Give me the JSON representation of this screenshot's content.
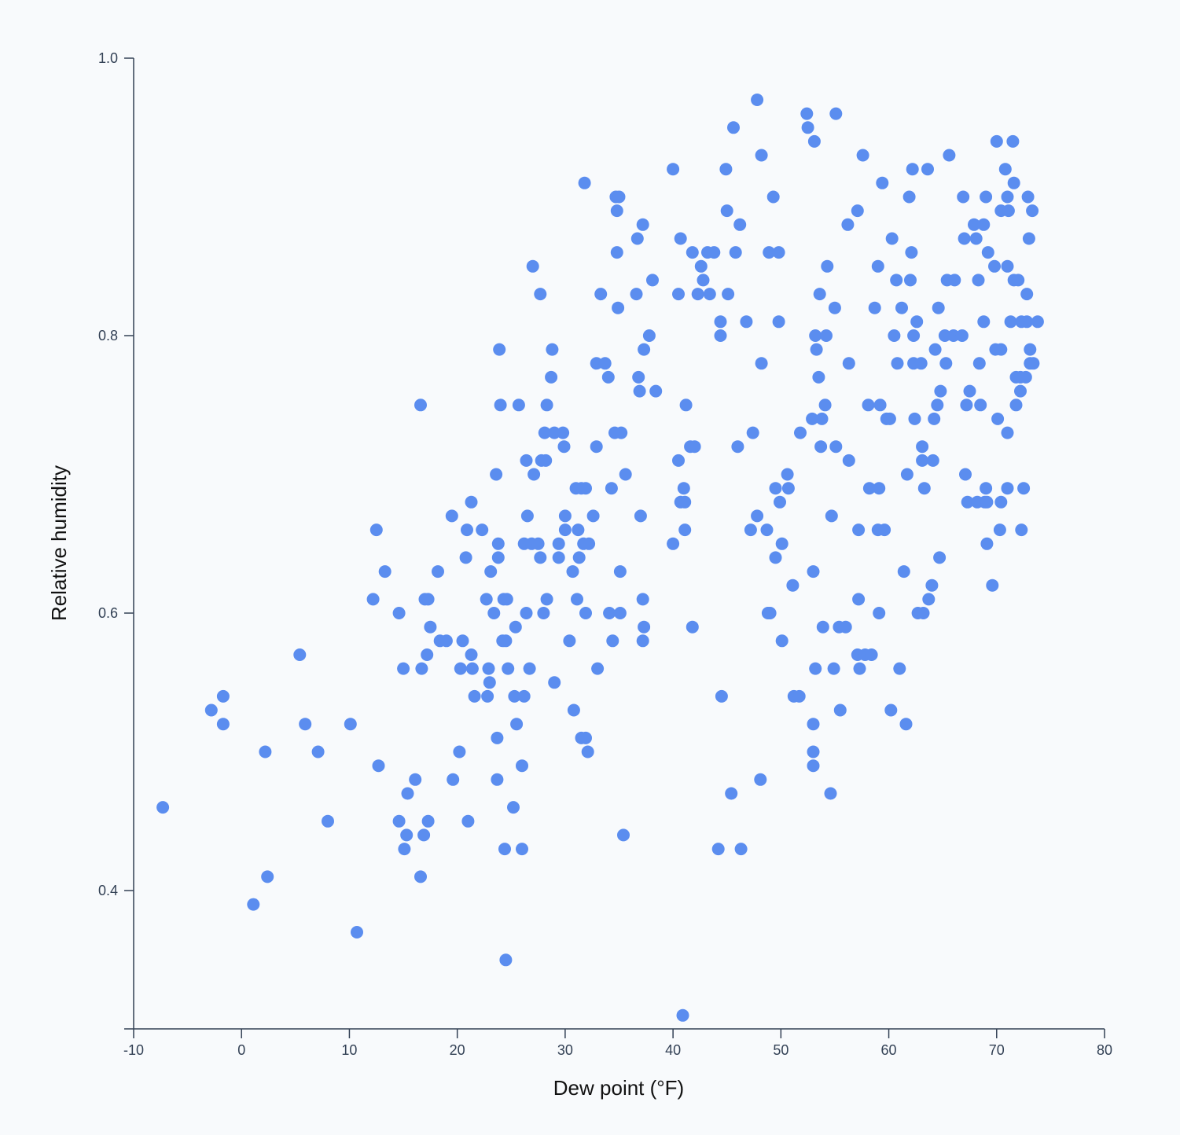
{
  "chart_data": {
    "type": "scatter",
    "xlabel": "Dew point (°F)",
    "ylabel": "Relative humidity",
    "xlim": [
      -10,
      80
    ],
    "ylim": [
      0.31,
      1.0
    ],
    "x_ticks": [
      "-10",
      "0",
      "10",
      "20",
      "30",
      "40",
      "50",
      "60",
      "70",
      "80"
    ],
    "y_ticks": [
      "0.4",
      "0.6",
      "0.8",
      "1.0"
    ],
    "grid": false,
    "point_color": "#5b8def",
    "points": [
      [
        -7.3,
        0.46
      ],
      [
        -2.8,
        0.53
      ],
      [
        -1.7,
        0.54
      ],
      [
        -1.7,
        0.52
      ],
      [
        1.1,
        0.39
      ],
      [
        2.2,
        0.5
      ],
      [
        2.4,
        0.41
      ],
      [
        5.4,
        0.57
      ],
      [
        5.9,
        0.52
      ],
      [
        7.1,
        0.5
      ],
      [
        8.0,
        0.45
      ],
      [
        10.1,
        0.52
      ],
      [
        10.7,
        0.37
      ],
      [
        12.2,
        0.61
      ],
      [
        12.5,
        0.66
      ],
      [
        12.7,
        0.49
      ],
      [
        13.3,
        0.63
      ],
      [
        14.6,
        0.45
      ],
      [
        14.6,
        0.6
      ],
      [
        15.0,
        0.56
      ],
      [
        15.1,
        0.43
      ],
      [
        15.3,
        0.44
      ],
      [
        15.4,
        0.47
      ],
      [
        16.1,
        0.48
      ],
      [
        16.6,
        0.41
      ],
      [
        16.6,
        0.75
      ],
      [
        16.7,
        0.56
      ],
      [
        16.9,
        0.44
      ],
      [
        17.0,
        0.61
      ],
      [
        17.3,
        0.61
      ],
      [
        17.2,
        0.57
      ],
      [
        17.3,
        0.45
      ],
      [
        17.5,
        0.59
      ],
      [
        18.2,
        0.63
      ],
      [
        18.4,
        0.58
      ],
      [
        19.0,
        0.58
      ],
      [
        19.5,
        0.67
      ],
      [
        19.6,
        0.48
      ],
      [
        20.2,
        0.5
      ],
      [
        20.3,
        0.56
      ],
      [
        20.5,
        0.58
      ],
      [
        20.8,
        0.64
      ],
      [
        20.9,
        0.66
      ],
      [
        21.0,
        0.45
      ],
      [
        21.3,
        0.57
      ],
      [
        21.3,
        0.68
      ],
      [
        21.4,
        0.56
      ],
      [
        21.6,
        0.54
      ],
      [
        22.3,
        0.66
      ],
      [
        22.7,
        0.61
      ],
      [
        22.8,
        0.54
      ],
      [
        22.9,
        0.56
      ],
      [
        23.0,
        0.55
      ],
      [
        23.1,
        0.63
      ],
      [
        23.4,
        0.6
      ],
      [
        23.6,
        0.7
      ],
      [
        23.7,
        0.51
      ],
      [
        23.7,
        0.48
      ],
      [
        23.8,
        0.65
      ],
      [
        23.8,
        0.64
      ],
      [
        23.9,
        0.79
      ],
      [
        24.0,
        0.75
      ],
      [
        24.2,
        0.58
      ],
      [
        24.3,
        0.61
      ],
      [
        24.4,
        0.43
      ],
      [
        24.5,
        0.58
      ],
      [
        24.5,
        0.35
      ],
      [
        24.6,
        0.61
      ],
      [
        24.7,
        0.56
      ],
      [
        25.2,
        0.46
      ],
      [
        25.3,
        0.54
      ],
      [
        25.4,
        0.59
      ],
      [
        25.5,
        0.52
      ],
      [
        25.7,
        0.75
      ],
      [
        26.0,
        0.49
      ],
      [
        26.0,
        0.43
      ],
      [
        26.2,
        0.65
      ],
      [
        26.2,
        0.54
      ],
      [
        26.4,
        0.6
      ],
      [
        26.4,
        0.71
      ],
      [
        26.5,
        0.67
      ],
      [
        26.7,
        0.56
      ],
      [
        26.9,
        0.65
      ],
      [
        27.0,
        0.85
      ],
      [
        27.1,
        0.7
      ],
      [
        27.5,
        0.65
      ],
      [
        27.7,
        0.64
      ],
      [
        27.7,
        0.83
      ],
      [
        27.8,
        0.71
      ],
      [
        28.0,
        0.6
      ],
      [
        28.1,
        0.73
      ],
      [
        28.2,
        0.71
      ],
      [
        28.3,
        0.75
      ],
      [
        28.3,
        0.61
      ],
      [
        28.7,
        0.77
      ],
      [
        28.8,
        0.79
      ],
      [
        29.0,
        0.73
      ],
      [
        29.0,
        0.55
      ],
      [
        29.4,
        0.65
      ],
      [
        29.4,
        0.64
      ],
      [
        29.8,
        0.73
      ],
      [
        29.9,
        0.72
      ],
      [
        30.0,
        0.67
      ],
      [
        30.0,
        0.66
      ],
      [
        30.4,
        0.58
      ],
      [
        30.7,
        0.63
      ],
      [
        30.8,
        0.53
      ],
      [
        31.0,
        0.69
      ],
      [
        31.1,
        0.61
      ],
      [
        31.2,
        0.66
      ],
      [
        31.3,
        0.64
      ],
      [
        31.5,
        0.69
      ],
      [
        31.5,
        0.51
      ],
      [
        31.7,
        0.65
      ],
      [
        31.8,
        0.91
      ],
      [
        31.9,
        0.69
      ],
      [
        31.9,
        0.51
      ],
      [
        31.9,
        0.6
      ],
      [
        32.1,
        0.5
      ],
      [
        32.2,
        0.65
      ],
      [
        32.6,
        0.67
      ],
      [
        32.9,
        0.78
      ],
      [
        32.9,
        0.72
      ],
      [
        33.0,
        0.56
      ],
      [
        33.3,
        0.83
      ],
      [
        33.7,
        0.78
      ],
      [
        34.0,
        0.77
      ],
      [
        34.1,
        0.6
      ],
      [
        34.3,
        0.69
      ],
      [
        34.4,
        0.58
      ],
      [
        34.6,
        0.73
      ],
      [
        34.7,
        0.9
      ],
      [
        34.8,
        0.89
      ],
      [
        34.8,
        0.86
      ],
      [
        34.9,
        0.82
      ],
      [
        35.0,
        0.9
      ],
      [
        35.1,
        0.6
      ],
      [
        35.1,
        0.63
      ],
      [
        35.2,
        0.73
      ],
      [
        35.4,
        0.44
      ],
      [
        35.6,
        0.7
      ],
      [
        36.6,
        0.83
      ],
      [
        36.7,
        0.87
      ],
      [
        36.8,
        0.77
      ],
      [
        36.9,
        0.76
      ],
      [
        37.0,
        0.67
      ],
      [
        37.2,
        0.88
      ],
      [
        37.2,
        0.61
      ],
      [
        37.2,
        0.58
      ],
      [
        37.3,
        0.59
      ],
      [
        37.3,
        0.79
      ],
      [
        37.8,
        0.8
      ],
      [
        38.1,
        0.84
      ],
      [
        38.4,
        0.76
      ],
      [
        40.0,
        0.92
      ],
      [
        40.0,
        0.65
      ],
      [
        40.5,
        0.83
      ],
      [
        40.5,
        0.71
      ],
      [
        40.7,
        0.87
      ],
      [
        40.7,
        0.68
      ],
      [
        40.9,
        0.31
      ],
      [
        41.0,
        0.69
      ],
      [
        41.1,
        0.66
      ],
      [
        41.1,
        0.68
      ],
      [
        41.2,
        0.75
      ],
      [
        41.6,
        0.72
      ],
      [
        41.8,
        0.59
      ],
      [
        41.8,
        0.86
      ],
      [
        42.0,
        0.72
      ],
      [
        42.3,
        0.83
      ],
      [
        42.6,
        0.85
      ],
      [
        42.8,
        0.84
      ],
      [
        43.2,
        0.86
      ],
      [
        43.4,
        0.83
      ],
      [
        43.8,
        0.86
      ],
      [
        44.2,
        0.43
      ],
      [
        44.4,
        0.81
      ],
      [
        44.4,
        0.8
      ],
      [
        44.5,
        0.54
      ],
      [
        44.9,
        0.92
      ],
      [
        45.0,
        0.89
      ],
      [
        45.1,
        0.83
      ],
      [
        45.4,
        0.47
      ],
      [
        45.6,
        0.95
      ],
      [
        45.8,
        0.86
      ],
      [
        46.0,
        0.72
      ],
      [
        46.2,
        0.88
      ],
      [
        46.3,
        0.43
      ],
      [
        46.8,
        0.81
      ],
      [
        47.2,
        0.66
      ],
      [
        47.4,
        0.73
      ],
      [
        47.8,
        0.67
      ],
      [
        47.8,
        0.97
      ],
      [
        48.1,
        0.48
      ],
      [
        48.2,
        0.93
      ],
      [
        48.2,
        0.78
      ],
      [
        48.7,
        0.66
      ],
      [
        48.8,
        0.6
      ],
      [
        48.9,
        0.86
      ],
      [
        49.0,
        0.6
      ],
      [
        49.3,
        0.9
      ],
      [
        49.5,
        0.69
      ],
      [
        49.5,
        0.64
      ],
      [
        49.8,
        0.86
      ],
      [
        49.8,
        0.81
      ],
      [
        49.9,
        0.68
      ],
      [
        50.1,
        0.58
      ],
      [
        50.1,
        0.65
      ],
      [
        50.6,
        0.7
      ],
      [
        50.7,
        0.69
      ],
      [
        51.1,
        0.62
      ],
      [
        51.2,
        0.54
      ],
      [
        51.7,
        0.54
      ],
      [
        51.8,
        0.73
      ],
      [
        52.4,
        0.96
      ],
      [
        52.5,
        0.95
      ],
      [
        52.9,
        0.74
      ],
      [
        53.0,
        0.63
      ],
      [
        53.0,
        0.52
      ],
      [
        53.0,
        0.5
      ],
      [
        53.0,
        0.49
      ],
      [
        53.1,
        0.94
      ],
      [
        53.2,
        0.8
      ],
      [
        53.2,
        0.56
      ],
      [
        53.3,
        0.79
      ],
      [
        53.5,
        0.77
      ],
      [
        53.6,
        0.83
      ],
      [
        53.7,
        0.72
      ],
      [
        53.8,
        0.74
      ],
      [
        53.9,
        0.59
      ],
      [
        54.1,
        0.75
      ],
      [
        54.2,
        0.8
      ],
      [
        54.3,
        0.85
      ],
      [
        54.6,
        0.47
      ],
      [
        54.7,
        0.67
      ],
      [
        54.9,
        0.56
      ],
      [
        55.0,
        0.82
      ],
      [
        55.1,
        0.96
      ],
      [
        55.1,
        0.72
      ],
      [
        55.4,
        0.59
      ],
      [
        55.5,
        0.53
      ],
      [
        56.0,
        0.59
      ],
      [
        56.2,
        0.88
      ],
      [
        56.3,
        0.78
      ],
      [
        56.3,
        0.71
      ],
      [
        57.1,
        0.89
      ],
      [
        57.1,
        0.57
      ],
      [
        57.2,
        0.66
      ],
      [
        57.2,
        0.61
      ],
      [
        57.3,
        0.56
      ],
      [
        57.6,
        0.93
      ],
      [
        57.8,
        0.57
      ],
      [
        58.1,
        0.75
      ],
      [
        58.2,
        0.69
      ],
      [
        58.4,
        0.57
      ],
      [
        58.7,
        0.82
      ],
      [
        59.0,
        0.85
      ],
      [
        59.0,
        0.66
      ],
      [
        59.1,
        0.69
      ],
      [
        59.1,
        0.6
      ],
      [
        59.2,
        0.75
      ],
      [
        59.4,
        0.91
      ],
      [
        59.6,
        0.66
      ],
      [
        59.8,
        0.74
      ],
      [
        60.1,
        0.74
      ],
      [
        60.2,
        0.53
      ],
      [
        60.3,
        0.87
      ],
      [
        60.5,
        0.8
      ],
      [
        60.7,
        0.84
      ],
      [
        60.8,
        0.78
      ],
      [
        61.0,
        0.56
      ],
      [
        61.2,
        0.82
      ],
      [
        61.4,
        0.63
      ],
      [
        61.6,
        0.52
      ],
      [
        61.7,
        0.7
      ],
      [
        61.9,
        0.9
      ],
      [
        62.0,
        0.84
      ],
      [
        62.1,
        0.86
      ],
      [
        62.2,
        0.92
      ],
      [
        62.3,
        0.8
      ],
      [
        62.3,
        0.78
      ],
      [
        62.4,
        0.74
      ],
      [
        62.6,
        0.81
      ],
      [
        62.7,
        0.6
      ],
      [
        63.0,
        0.78
      ],
      [
        63.1,
        0.72
      ],
      [
        63.1,
        0.71
      ],
      [
        63.2,
        0.6
      ],
      [
        63.3,
        0.69
      ],
      [
        63.6,
        0.92
      ],
      [
        63.7,
        0.61
      ],
      [
        64.0,
        0.62
      ],
      [
        64.1,
        0.71
      ],
      [
        64.2,
        0.74
      ],
      [
        64.3,
        0.79
      ],
      [
        64.5,
        0.75
      ],
      [
        64.6,
        0.82
      ],
      [
        64.7,
        0.64
      ],
      [
        64.8,
        0.76
      ],
      [
        65.2,
        0.8
      ],
      [
        65.3,
        0.78
      ],
      [
        65.4,
        0.84
      ],
      [
        65.6,
        0.93
      ],
      [
        66.0,
        0.8
      ],
      [
        66.1,
        0.84
      ],
      [
        66.8,
        0.8
      ],
      [
        66.9,
        0.9
      ],
      [
        67.0,
        0.87
      ],
      [
        67.1,
        0.7
      ],
      [
        67.2,
        0.75
      ],
      [
        67.3,
        0.68
      ],
      [
        67.5,
        0.76
      ],
      [
        67.9,
        0.88
      ],
      [
        68.1,
        0.87
      ],
      [
        68.2,
        0.68
      ],
      [
        68.3,
        0.84
      ],
      [
        68.4,
        0.78
      ],
      [
        68.5,
        0.75
      ],
      [
        68.8,
        0.88
      ],
      [
        68.8,
        0.81
      ],
      [
        68.9,
        0.68
      ],
      [
        69.0,
        0.9
      ],
      [
        69.0,
        0.69
      ],
      [
        69.1,
        0.68
      ],
      [
        69.1,
        0.65
      ],
      [
        69.2,
        0.86
      ],
      [
        69.6,
        0.62
      ],
      [
        69.8,
        0.85
      ],
      [
        69.9,
        0.79
      ],
      [
        70.0,
        0.94
      ],
      [
        70.1,
        0.74
      ],
      [
        70.3,
        0.66
      ],
      [
        70.4,
        0.89
      ],
      [
        70.4,
        0.79
      ],
      [
        70.4,
        0.68
      ],
      [
        70.8,
        0.92
      ],
      [
        71.0,
        0.9
      ],
      [
        71.0,
        0.85
      ],
      [
        71.0,
        0.73
      ],
      [
        71.0,
        0.69
      ],
      [
        71.1,
        0.89
      ],
      [
        71.3,
        0.81
      ],
      [
        71.5,
        0.94
      ],
      [
        71.6,
        0.91
      ],
      [
        71.6,
        0.84
      ],
      [
        71.8,
        0.75
      ],
      [
        71.8,
        0.77
      ],
      [
        72.0,
        0.84
      ],
      [
        72.2,
        0.77
      ],
      [
        72.2,
        0.76
      ],
      [
        72.3,
        0.81
      ],
      [
        72.3,
        0.66
      ],
      [
        72.5,
        0.69
      ],
      [
        72.7,
        0.77
      ],
      [
        72.8,
        0.81
      ],
      [
        72.8,
        0.83
      ],
      [
        72.9,
        0.9
      ],
      [
        73.0,
        0.87
      ],
      [
        73.1,
        0.79
      ],
      [
        73.1,
        0.78
      ],
      [
        73.3,
        0.89
      ],
      [
        73.4,
        0.78
      ],
      [
        73.8,
        0.81
      ]
    ]
  }
}
